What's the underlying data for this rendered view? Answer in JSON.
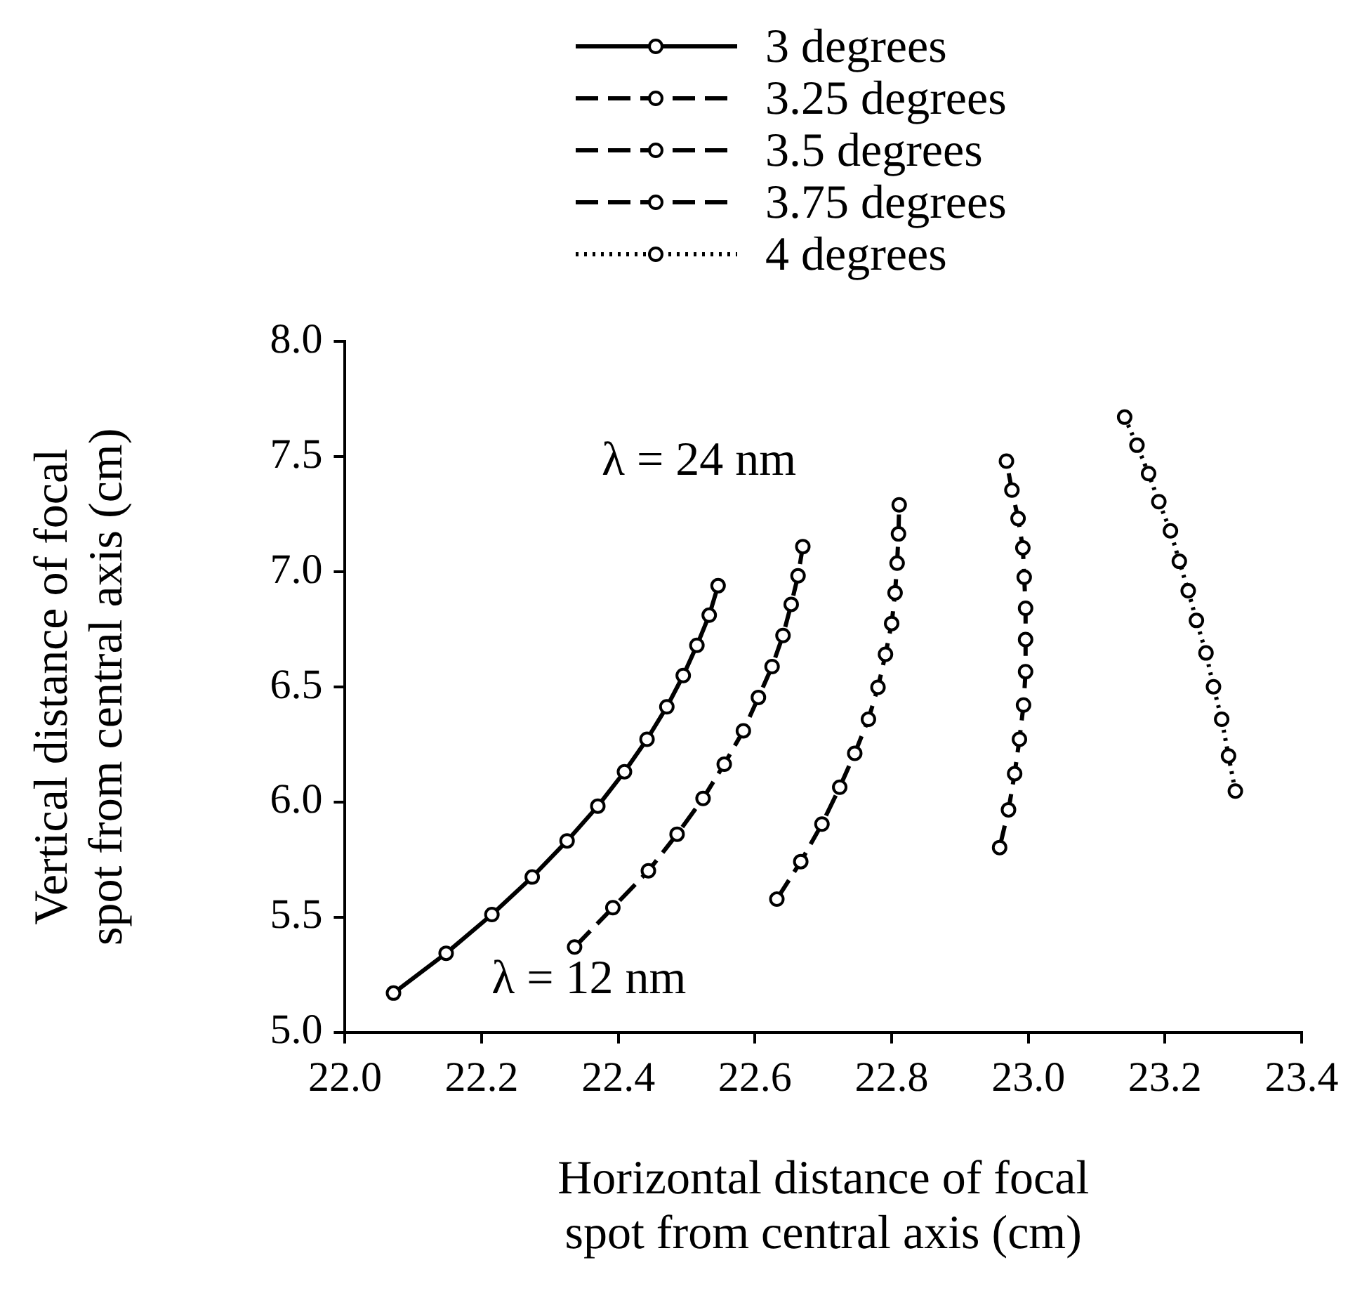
{
  "chart_data": {
    "type": "line",
    "xlabel": "Horizontal distance of focal\nspot from central axis (cm)",
    "ylabel": "Vertical distance of focal\nspot from central axis (cm)",
    "xlim": [
      22.0,
      23.4
    ],
    "xticks": [
      {
        "value": 22.0,
        "label": "22.0"
      },
      {
        "value": 22.2,
        "label": "22.2"
      },
      {
        "value": 22.4,
        "label": "22.4"
      },
      {
        "value": 22.6,
        "label": "22.6"
      },
      {
        "value": 22.8,
        "label": "22.8"
      },
      {
        "value": 23.0,
        "label": "23.0"
      },
      {
        "value": 23.2,
        "label": "23.2"
      },
      {
        "value": 23.4,
        "label": "23.4"
      }
    ],
    "ylim": [
      5.0,
      8.0
    ],
    "yticks": [
      {
        "value": 5.0,
        "label": "5.0"
      },
      {
        "value": 5.5,
        "label": "5.5"
      },
      {
        "value": 6.0,
        "label": "6.0"
      },
      {
        "value": 6.5,
        "label": "6.5"
      },
      {
        "value": 7.0,
        "label": "7.0"
      },
      {
        "value": 7.5,
        "label": "7.5"
      },
      {
        "value": 8.0,
        "label": "8.0"
      }
    ],
    "grid": false,
    "legend": "top",
    "marker": "circle",
    "series": [
      {
        "name": "3 degrees",
        "color": "#000000",
        "line_style": "solid",
        "x": [
          22.071,
          22.148,
          22.215,
          22.274,
          22.325,
          22.37,
          22.409,
          22.442,
          22.471,
          22.495,
          22.515,
          22.533,
          22.546
        ],
        "values": [
          5.17,
          5.343,
          5.511,
          5.674,
          5.831,
          5.982,
          6.131,
          6.272,
          6.413,
          6.549,
          6.68,
          6.811,
          6.939
        ]
      },
      {
        "name": "3.25 degrees",
        "color": "#000000",
        "line_style": "dashed",
        "x": [
          22.336,
          22.392,
          22.444,
          22.486,
          22.524,
          22.555,
          22.583,
          22.605,
          22.625,
          22.641,
          22.653,
          22.663,
          22.67
        ],
        "values": [
          5.37,
          5.541,
          5.701,
          5.86,
          6.015,
          6.164,
          6.309,
          6.454,
          6.588,
          6.723,
          6.858,
          6.982,
          7.109
        ]
      },
      {
        "name": "3.5 degrees",
        "color": "#000000",
        "line_style": "dashed",
        "x": [
          22.632,
          22.667,
          22.698,
          22.724,
          22.746,
          22.766,
          22.78,
          22.791,
          22.8,
          22.805,
          22.808,
          22.81,
          22.811
        ],
        "values": [
          5.578,
          5.741,
          5.904,
          6.064,
          6.211,
          6.359,
          6.498,
          6.641,
          6.775,
          6.908,
          7.037,
          7.164,
          7.29
        ]
      },
      {
        "name": "3.75 degrees",
        "color": "#000000",
        "line_style": "dashed",
        "x": [
          22.958,
          22.971,
          22.98,
          22.987,
          22.993,
          22.996,
          22.996,
          22.996,
          22.994,
          22.992,
          22.985,
          22.976,
          22.968
        ],
        "values": [
          5.802,
          5.966,
          6.123,
          6.272,
          6.421,
          6.566,
          6.705,
          6.841,
          6.976,
          7.103,
          7.231,
          7.354,
          7.48
        ]
      },
      {
        "name": "4 degrees",
        "color": "#000000",
        "line_style": "dotted",
        "x": [
          23.141,
          23.159,
          23.176,
          23.191,
          23.208,
          23.221,
          23.234,
          23.246,
          23.26,
          23.271,
          23.283,
          23.293,
          23.303
        ],
        "values": [
          7.671,
          7.549,
          7.426,
          7.304,
          7.177,
          7.045,
          6.917,
          6.788,
          6.647,
          6.5,
          6.359,
          6.2,
          6.047
        ]
      }
    ],
    "annotations": [
      "λ = 24 nm",
      "λ = 12 nm"
    ]
  }
}
